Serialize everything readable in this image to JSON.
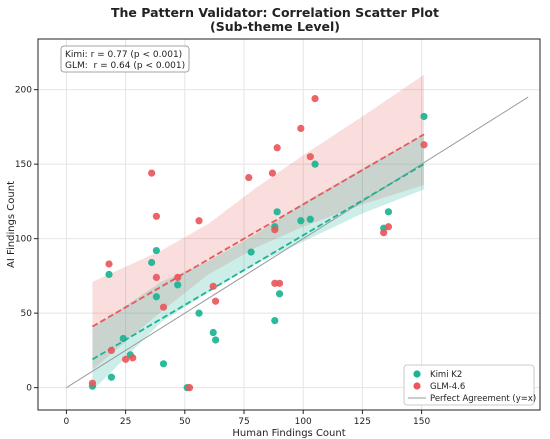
{
  "chart_data": {
    "type": "scatter",
    "title": "The Pattern Validator: Correlation Scatter Plot",
    "subtitle": "(Sub-theme Level)",
    "xlabel": "Human Findings Count",
    "ylabel": "AI Findings Count",
    "xlim": [
      -12,
      200
    ],
    "ylim": [
      -15,
      234
    ],
    "xticks": [
      0,
      25,
      50,
      75,
      100,
      125,
      150
    ],
    "yticks": [
      0,
      50,
      100,
      150,
      200
    ],
    "grid": true,
    "stats_box": {
      "line1": "Kimi: r = 0.77 (p < 0.001)",
      "line2": "GLM:  r = 0.64 (p < 0.001)"
    },
    "legend": {
      "placement": "bottom-right",
      "entries": [
        "Kimi K2",
        "GLM-4.6",
        "Perfect Agreement (y=x)"
      ]
    },
    "reference_line": {
      "name": "Perfect Agreement (y=x)",
      "from": 0,
      "to": 195
    },
    "series": [
      {
        "name": "Kimi K2",
        "color": "#1ab394",
        "points": [
          [
            11,
            1
          ],
          [
            18,
            76
          ],
          [
            19,
            7
          ],
          [
            24,
            33
          ],
          [
            27,
            22
          ],
          [
            36,
            84
          ],
          [
            38,
            92
          ],
          [
            38,
            61
          ],
          [
            41,
            16
          ],
          [
            47,
            69
          ],
          [
            51,
            0
          ],
          [
            56,
            50
          ],
          [
            62,
            37
          ],
          [
            63,
            32
          ],
          [
            78,
            91
          ],
          [
            88,
            108
          ],
          [
            88,
            45
          ],
          [
            89,
            118
          ],
          [
            90,
            63
          ],
          [
            99,
            112
          ],
          [
            103,
            113
          ],
          [
            105,
            150
          ],
          [
            134,
            107
          ],
          [
            136,
            118
          ],
          [
            151,
            182
          ]
        ],
        "fit": {
          "x": [
            11,
            151
          ],
          "y": [
            19,
            150
          ]
        },
        "band": {
          "x": [
            11,
            40,
            60,
            80,
            100,
            125,
            151
          ],
          "lower": [
            -2,
            44,
            64,
            83,
            98,
            117,
            133
          ],
          "upper": [
            40,
            71,
            85,
            103,
            124,
            147,
            170
          ]
        }
      },
      {
        "name": "GLM-4.6",
        "color": "#e8585c",
        "points": [
          [
            11,
            3
          ],
          [
            18,
            83
          ],
          [
            19,
            25
          ],
          [
            25,
            19
          ],
          [
            28,
            20
          ],
          [
            36,
            144
          ],
          [
            38,
            115
          ],
          [
            38,
            74
          ],
          [
            41,
            54
          ],
          [
            47,
            74
          ],
          [
            52,
            0
          ],
          [
            56,
            112
          ],
          [
            62,
            68
          ],
          [
            63,
            58
          ],
          [
            77,
            141
          ],
          [
            87,
            144
          ],
          [
            88,
            106
          ],
          [
            88,
            70
          ],
          [
            89,
            161
          ],
          [
            90,
            70
          ],
          [
            99,
            174
          ],
          [
            103,
            155
          ],
          [
            105,
            194
          ],
          [
            134,
            104
          ],
          [
            136,
            108
          ],
          [
            151,
            163
          ]
        ],
        "fit": {
          "x": [
            11,
            151
          ],
          "y": [
            41,
            170
          ]
        },
        "band": {
          "x": [
            11,
            40,
            60,
            80,
            100,
            125,
            151
          ],
          "lower": [
            12,
            51,
            76,
            94,
            108,
            123,
            136
          ],
          "upper": [
            71,
            92,
            110,
            134,
            156,
            182,
            210
          ]
        }
      }
    ]
  }
}
